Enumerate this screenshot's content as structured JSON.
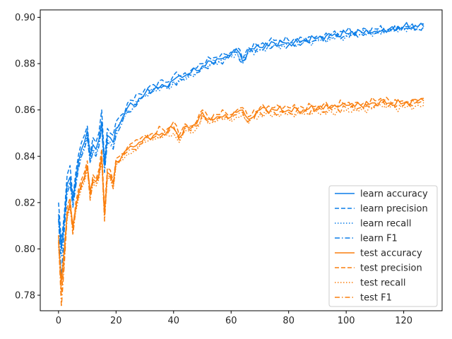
{
  "chart_data": {
    "type": "line",
    "title": "",
    "xlabel": "",
    "ylabel": "",
    "xlim": [
      -6.35,
      133.35
    ],
    "ylim": [
      0.7733,
      0.9032
    ],
    "xticks": [
      0,
      20,
      40,
      60,
      80,
      100,
      120
    ],
    "xtick_labels": [
      "0",
      "20",
      "40",
      "60",
      "80",
      "100",
      "120"
    ],
    "yticks": [
      0.78,
      0.8,
      0.82,
      0.84,
      0.86,
      0.88,
      0.9
    ],
    "ytick_labels": [
      "0.78",
      "0.80",
      "0.82",
      "0.84",
      "0.86",
      "0.88",
      "0.90"
    ],
    "grid": false,
    "legend_position": "bottom-right",
    "colors": {
      "learn": "#0a7de8",
      "test": "#fa7f0e"
    },
    "series": [
      {
        "name": "learn accuracy",
        "color": "#0a7de8",
        "style": "solid",
        "jitter": 0.0,
        "x": [
          0,
          1,
          2,
          3,
          4,
          5,
          6,
          7,
          8,
          9,
          10,
          11,
          12,
          13,
          14,
          15,
          16,
          17,
          18,
          19,
          20,
          22,
          24,
          26,
          28,
          30,
          33,
          36,
          38,
          40,
          43,
          46,
          48,
          50,
          53,
          56,
          58,
          60,
          62,
          64,
          66,
          70,
          75,
          80,
          85,
          90,
          95,
          100,
          105,
          110,
          115,
          120,
          125,
          127
        ],
        "y": [
          0.815,
          0.8,
          0.812,
          0.828,
          0.831,
          0.821,
          0.83,
          0.838,
          0.843,
          0.846,
          0.851,
          0.84,
          0.845,
          0.843,
          0.847,
          0.855,
          0.836,
          0.849,
          0.848,
          0.846,
          0.852,
          0.856,
          0.861,
          0.862,
          0.865,
          0.867,
          0.869,
          0.871,
          0.87,
          0.873,
          0.874,
          0.876,
          0.877,
          0.879,
          0.881,
          0.882,
          0.883,
          0.884,
          0.886,
          0.881,
          0.886,
          0.887,
          0.889,
          0.889,
          0.89,
          0.891,
          0.892,
          0.893,
          0.894,
          0.894,
          0.895,
          0.896,
          0.896,
          0.896
        ]
      },
      {
        "name": "learn precision",
        "color": "#0a7de8",
        "style": "dashed",
        "jitter": 0.0015,
        "x": [
          0,
          1,
          2,
          3,
          4,
          5,
          6,
          7,
          8,
          9,
          10,
          11,
          12,
          13,
          14,
          15,
          16,
          17,
          18,
          19,
          20,
          22,
          24,
          26,
          28,
          30,
          33,
          36,
          38,
          40,
          43,
          46,
          48,
          50,
          53,
          56,
          58,
          60,
          62,
          64,
          66,
          70,
          75,
          80,
          85,
          90,
          95,
          100,
          105,
          110,
          115,
          120,
          125,
          127
        ],
        "y": [
          0.82,
          0.803,
          0.815,
          0.832,
          0.836,
          0.822,
          0.833,
          0.841,
          0.846,
          0.849,
          0.853,
          0.841,
          0.848,
          0.846,
          0.85,
          0.86,
          0.838,
          0.852,
          0.85,
          0.849,
          0.855,
          0.858,
          0.863,
          0.864,
          0.867,
          0.869,
          0.871,
          0.873,
          0.872,
          0.875,
          0.875,
          0.877,
          0.878,
          0.88,
          0.882,
          0.883,
          0.884,
          0.885,
          0.887,
          0.882,
          0.887,
          0.888,
          0.89,
          0.89,
          0.891,
          0.892,
          0.893,
          0.894,
          0.894,
          0.895,
          0.895,
          0.896,
          0.896,
          0.897
        ]
      },
      {
        "name": "learn recall",
        "color": "#0a7de8",
        "style": "dotted",
        "jitter": 0.0012,
        "x": [
          0,
          1,
          2,
          3,
          4,
          5,
          6,
          7,
          8,
          9,
          10,
          11,
          12,
          13,
          14,
          15,
          16,
          17,
          18,
          19,
          20,
          22,
          24,
          26,
          28,
          30,
          33,
          36,
          38,
          40,
          43,
          46,
          48,
          50,
          53,
          56,
          58,
          60,
          62,
          64,
          66,
          70,
          75,
          80,
          85,
          90,
          95,
          100,
          105,
          110,
          115,
          120,
          125,
          127
        ],
        "y": [
          0.812,
          0.797,
          0.81,
          0.826,
          0.829,
          0.819,
          0.828,
          0.836,
          0.841,
          0.844,
          0.849,
          0.838,
          0.843,
          0.841,
          0.845,
          0.853,
          0.834,
          0.847,
          0.846,
          0.844,
          0.85,
          0.855,
          0.86,
          0.861,
          0.864,
          0.866,
          0.868,
          0.87,
          0.869,
          0.872,
          0.873,
          0.875,
          0.876,
          0.878,
          0.88,
          0.881,
          0.882,
          0.883,
          0.885,
          0.88,
          0.885,
          0.886,
          0.888,
          0.888,
          0.889,
          0.89,
          0.891,
          0.892,
          0.893,
          0.893,
          0.894,
          0.895,
          0.895,
          0.896
        ]
      },
      {
        "name": "learn F1",
        "color": "#0a7de8",
        "style": "dashdot",
        "jitter": 0.0012,
        "x": [
          0,
          1,
          2,
          3,
          4,
          5,
          6,
          7,
          8,
          9,
          10,
          11,
          12,
          13,
          14,
          15,
          16,
          17,
          18,
          19,
          20,
          22,
          24,
          26,
          28,
          30,
          33,
          36,
          38,
          40,
          43,
          46,
          48,
          50,
          53,
          56,
          58,
          60,
          62,
          64,
          66,
          70,
          75,
          80,
          85,
          90,
          95,
          100,
          105,
          110,
          115,
          120,
          125,
          127
        ],
        "y": [
          0.813,
          0.788,
          0.808,
          0.824,
          0.828,
          0.818,
          0.827,
          0.835,
          0.84,
          0.843,
          0.848,
          0.837,
          0.842,
          0.84,
          0.844,
          0.852,
          0.833,
          0.846,
          0.845,
          0.843,
          0.849,
          0.854,
          0.859,
          0.861,
          0.864,
          0.866,
          0.868,
          0.87,
          0.869,
          0.872,
          0.873,
          0.875,
          0.876,
          0.878,
          0.88,
          0.881,
          0.882,
          0.883,
          0.885,
          0.88,
          0.885,
          0.886,
          0.888,
          0.888,
          0.889,
          0.89,
          0.891,
          0.892,
          0.893,
          0.893,
          0.894,
          0.895,
          0.895,
          0.896
        ]
      },
      {
        "name": "test accuracy",
        "color": "#fa7f0e",
        "style": "solid",
        "jitter": 0.0,
        "x": [
          0,
          1,
          2,
          3,
          4,
          5,
          6,
          7,
          8,
          9,
          10,
          11,
          12,
          13,
          14,
          15,
          16,
          17,
          18,
          19,
          20,
          22,
          24,
          26,
          28,
          30,
          33,
          36,
          38,
          40,
          42,
          44,
          46,
          48,
          50,
          52,
          55,
          58,
          60,
          62,
          64,
          66,
          70,
          75,
          80,
          85,
          90,
          95,
          100,
          105,
          110,
          112,
          115,
          120,
          125,
          127
        ],
        "y": [
          0.803,
          0.786,
          0.8,
          0.815,
          0.82,
          0.81,
          0.818,
          0.824,
          0.828,
          0.831,
          0.836,
          0.825,
          0.83,
          0.829,
          0.832,
          0.84,
          0.815,
          0.833,
          0.832,
          0.828,
          0.838,
          0.84,
          0.843,
          0.844,
          0.846,
          0.848,
          0.849,
          0.85,
          0.851,
          0.852,
          0.848,
          0.853,
          0.852,
          0.854,
          0.859,
          0.856,
          0.857,
          0.858,
          0.857,
          0.859,
          0.86,
          0.856,
          0.86,
          0.86,
          0.86,
          0.86,
          0.861,
          0.861,
          0.862,
          0.862,
          0.863,
          0.864,
          0.863,
          0.863,
          0.864,
          0.864
        ]
      },
      {
        "name": "test precision",
        "color": "#fa7f0e",
        "style": "dashed",
        "jitter": 0.0018,
        "x": [
          0,
          1,
          2,
          3,
          4,
          5,
          6,
          7,
          8,
          9,
          10,
          11,
          12,
          13,
          14,
          15,
          16,
          17,
          18,
          19,
          20,
          22,
          24,
          26,
          28,
          30,
          33,
          36,
          38,
          40,
          42,
          44,
          46,
          48,
          50,
          52,
          55,
          58,
          60,
          62,
          64,
          66,
          70,
          75,
          80,
          85,
          90,
          95,
          100,
          105,
          110,
          112,
          115,
          120,
          125,
          127
        ],
        "y": [
          0.806,
          0.78,
          0.795,
          0.818,
          0.822,
          0.808,
          0.82,
          0.826,
          0.83,
          0.833,
          0.838,
          0.823,
          0.832,
          0.83,
          0.834,
          0.843,
          0.817,
          0.835,
          0.834,
          0.829,
          0.839,
          0.841,
          0.844,
          0.846,
          0.847,
          0.849,
          0.85,
          0.852,
          0.852,
          0.855,
          0.849,
          0.854,
          0.853,
          0.855,
          0.86,
          0.857,
          0.858,
          0.859,
          0.858,
          0.86,
          0.861,
          0.857,
          0.861,
          0.861,
          0.861,
          0.861,
          0.862,
          0.862,
          0.863,
          0.862,
          0.864,
          0.865,
          0.864,
          0.864,
          0.864,
          0.865
        ]
      },
      {
        "name": "test recall",
        "color": "#fa7f0e",
        "style": "dotted",
        "jitter": 0.0015,
        "x": [
          0,
          1,
          2,
          3,
          4,
          5,
          6,
          7,
          8,
          9,
          10,
          11,
          12,
          13,
          14,
          15,
          16,
          17,
          18,
          19,
          20,
          22,
          24,
          26,
          28,
          30,
          33,
          36,
          38,
          40,
          42,
          44,
          46,
          48,
          50,
          52,
          55,
          58,
          60,
          62,
          64,
          66,
          70,
          75,
          80,
          85,
          90,
          95,
          100,
          105,
          110,
          112,
          115,
          120,
          125,
          127
        ],
        "y": [
          0.801,
          0.784,
          0.798,
          0.813,
          0.818,
          0.808,
          0.816,
          0.822,
          0.826,
          0.829,
          0.834,
          0.823,
          0.828,
          0.827,
          0.83,
          0.838,
          0.813,
          0.831,
          0.83,
          0.826,
          0.836,
          0.838,
          0.841,
          0.842,
          0.844,
          0.846,
          0.847,
          0.848,
          0.849,
          0.85,
          0.846,
          0.851,
          0.85,
          0.852,
          0.857,
          0.854,
          0.855,
          0.856,
          0.855,
          0.857,
          0.858,
          0.854,
          0.858,
          0.858,
          0.858,
          0.858,
          0.859,
          0.859,
          0.86,
          0.86,
          0.861,
          0.862,
          0.861,
          0.861,
          0.862,
          0.862
        ]
      },
      {
        "name": "test F1",
        "color": "#fa7f0e",
        "style": "dashdot",
        "jitter": 0.0015,
        "x": [
          0,
          1,
          2,
          3,
          4,
          5,
          6,
          7,
          8,
          9,
          10,
          11,
          12,
          13,
          14,
          15,
          16,
          17,
          18,
          19,
          20,
          22,
          24,
          26,
          28,
          30,
          33,
          36,
          38,
          40,
          42,
          44,
          46,
          48,
          50,
          52,
          55,
          58,
          60,
          62,
          64,
          66,
          70,
          75,
          80,
          85,
          90,
          95,
          100,
          105,
          110,
          112,
          115,
          120,
          125,
          127
        ],
        "y": [
          0.804,
          0.775,
          0.793,
          0.814,
          0.819,
          0.806,
          0.817,
          0.823,
          0.827,
          0.83,
          0.835,
          0.821,
          0.829,
          0.828,
          0.831,
          0.839,
          0.812,
          0.832,
          0.831,
          0.826,
          0.837,
          0.839,
          0.842,
          0.843,
          0.845,
          0.847,
          0.848,
          0.849,
          0.85,
          0.853,
          0.847,
          0.852,
          0.851,
          0.853,
          0.858,
          0.855,
          0.856,
          0.857,
          0.856,
          0.858,
          0.859,
          0.855,
          0.859,
          0.859,
          0.859,
          0.859,
          0.86,
          0.86,
          0.861,
          0.861,
          0.862,
          0.863,
          0.862,
          0.862,
          0.863,
          0.863
        ]
      }
    ]
  }
}
